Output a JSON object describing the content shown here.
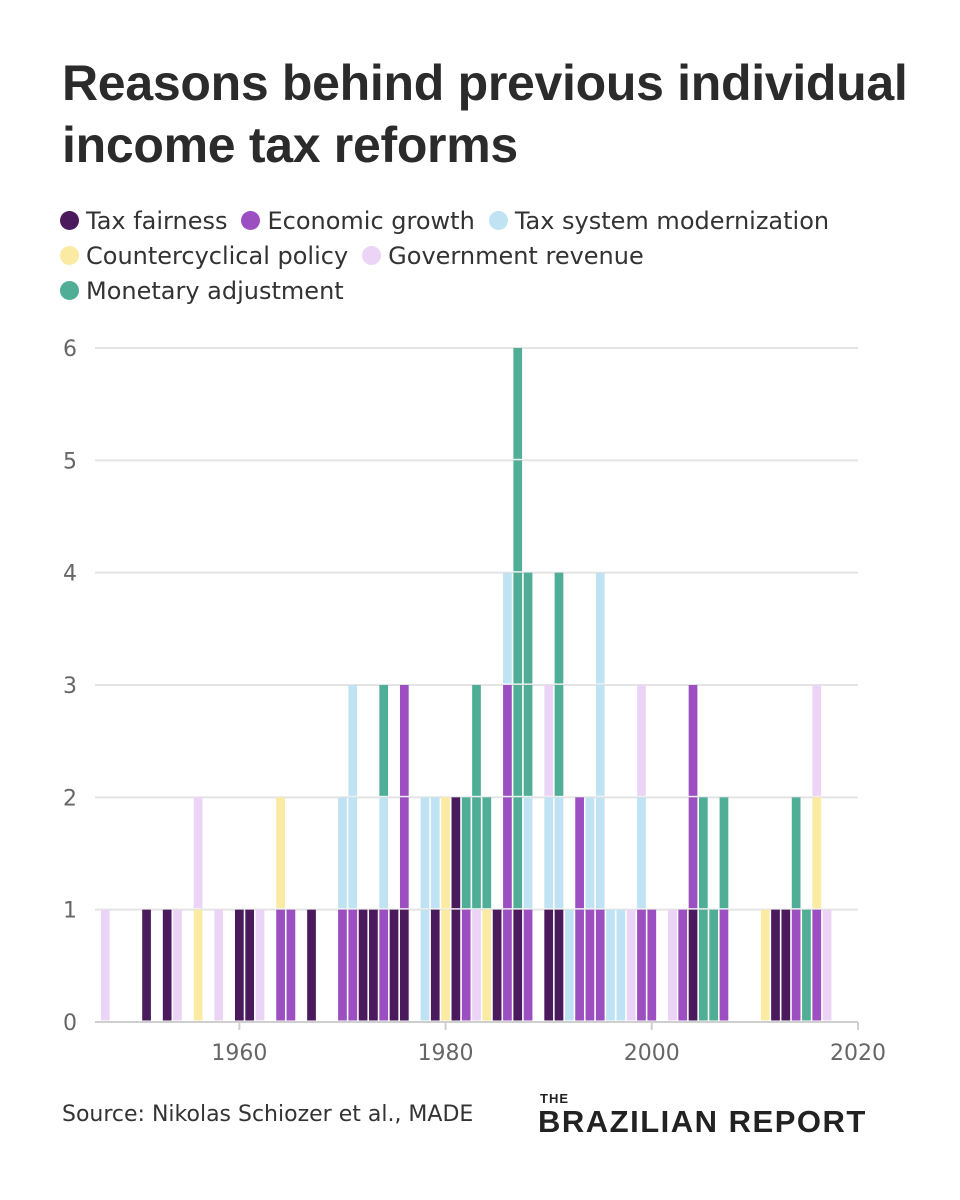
{
  "title": "Reasons behind previous individual income tax reforms",
  "legend": [
    {
      "label": "Tax fairness",
      "color": "#4a1a5c"
    },
    {
      "label": "Economic growth",
      "color": "#9b4fc1"
    },
    {
      "label": "Tax system modernization",
      "color": "#bfe3f2"
    },
    {
      "label": "Countercyclical policy",
      "color": "#fbeaa2"
    },
    {
      "label": "Government revenue",
      "color": "#ecd4f7"
    },
    {
      "label": "Monetary adjustment",
      "color": "#4fae95"
    }
  ],
  "source": "Source: Nikolas Schiozer et al., MADE",
  "logo": {
    "the": "THE",
    "main": "BRAZILIAN REPORT",
    "accent": "#1aa0c9"
  },
  "chart_data": {
    "type": "bar",
    "stacked": true,
    "title": "Reasons behind previous individual income tax reforms",
    "xlabel": "",
    "ylabel": "",
    "xlim": [
      1946,
      2020
    ],
    "ylim": [
      0,
      6
    ],
    "x_ticks": [
      "1960",
      "1980",
      "2000",
      "2020"
    ],
    "y_ticks": [
      "0",
      "1",
      "2",
      "3",
      "4",
      "5",
      "6"
    ],
    "grid": true,
    "legend_position": "top",
    "series_names": [
      "Tax fairness",
      "Economic growth",
      "Tax system modernization",
      "Countercyclical policy",
      "Government revenue",
      "Monetary adjustment"
    ],
    "bars": [
      {
        "year": 1947,
        "stack": [
          [
            "Government revenue",
            1
          ]
        ]
      },
      {
        "year": 1951,
        "stack": [
          [
            "Tax fairness",
            1
          ]
        ]
      },
      {
        "year": 1953,
        "stack": [
          [
            "Tax fairness",
            1
          ]
        ]
      },
      {
        "year": 1954,
        "stack": [
          [
            "Government revenue",
            1
          ]
        ]
      },
      {
        "year": 1956,
        "stack": [
          [
            "Countercyclical policy",
            1
          ],
          [
            "Government revenue",
            1
          ]
        ]
      },
      {
        "year": 1958,
        "stack": [
          [
            "Government revenue",
            1
          ]
        ]
      },
      {
        "year": 1960,
        "stack": [
          [
            "Tax fairness",
            1
          ]
        ]
      },
      {
        "year": 1961,
        "stack": [
          [
            "Tax fairness",
            1
          ]
        ]
      },
      {
        "year": 1962,
        "stack": [
          [
            "Government revenue",
            1
          ]
        ]
      },
      {
        "year": 1964,
        "stack": [
          [
            "Economic growth",
            1
          ],
          [
            "Countercyclical policy",
            1
          ]
        ]
      },
      {
        "year": 1965,
        "stack": [
          [
            "Economic growth",
            1
          ]
        ]
      },
      {
        "year": 1967,
        "stack": [
          [
            "Tax fairness",
            1
          ]
        ]
      },
      {
        "year": 1970,
        "stack": [
          [
            "Economic growth",
            1
          ],
          [
            "Tax system modernization",
            1
          ]
        ]
      },
      {
        "year": 1971,
        "stack": [
          [
            "Economic growth",
            1
          ],
          [
            "Tax system modernization",
            2
          ]
        ]
      },
      {
        "year": 1972,
        "stack": [
          [
            "Tax fairness",
            1
          ]
        ]
      },
      {
        "year": 1973,
        "stack": [
          [
            "Tax fairness",
            1
          ]
        ]
      },
      {
        "year": 1974,
        "stack": [
          [
            "Economic growth",
            1
          ],
          [
            "Tax system modernization",
            1
          ],
          [
            "Monetary adjustment",
            1
          ]
        ]
      },
      {
        "year": 1975,
        "stack": [
          [
            "Tax fairness",
            1
          ]
        ]
      },
      {
        "year": 1976,
        "stack": [
          [
            "Tax fairness",
            1
          ],
          [
            "Economic growth",
            2
          ]
        ]
      },
      {
        "year": 1978,
        "stack": [
          [
            "Tax system modernization",
            2
          ]
        ]
      },
      {
        "year": 1979,
        "stack": [
          [
            "Tax fairness",
            1
          ],
          [
            "Tax system modernization",
            1
          ]
        ]
      },
      {
        "year": 1980,
        "stack": [
          [
            "Countercyclical policy",
            2
          ]
        ]
      },
      {
        "year": 1981,
        "stack": [
          [
            "Tax fairness",
            2
          ]
        ]
      },
      {
        "year": 1982,
        "stack": [
          [
            "Economic growth",
            1
          ],
          [
            "Monetary adjustment",
            1
          ]
        ]
      },
      {
        "year": 1983,
        "stack": [
          [
            "Government revenue",
            1
          ],
          [
            "Monetary adjustment",
            2
          ]
        ]
      },
      {
        "year": 1984,
        "stack": [
          [
            "Countercyclical policy",
            1
          ],
          [
            "Monetary adjustment",
            1
          ]
        ]
      },
      {
        "year": 1985,
        "stack": [
          [
            "Tax fairness",
            1
          ]
        ]
      },
      {
        "year": 1986,
        "stack": [
          [
            "Economic growth",
            3
          ],
          [
            "Tax system modernization",
            1
          ]
        ]
      },
      {
        "year": 1987,
        "stack": [
          [
            "Tax fairness",
            1
          ],
          [
            "Monetary adjustment",
            5
          ]
        ]
      },
      {
        "year": 1988,
        "stack": [
          [
            "Economic growth",
            1
          ],
          [
            "Tax system modernization",
            1
          ],
          [
            "Monetary adjustment",
            2
          ]
        ]
      },
      {
        "year": 1990,
        "stack": [
          [
            "Tax fairness",
            1
          ],
          [
            "Tax system modernization",
            1
          ],
          [
            "Government revenue",
            1
          ]
        ]
      },
      {
        "year": 1991,
        "stack": [
          [
            "Tax fairness",
            1
          ],
          [
            "Tax system modernization",
            1
          ],
          [
            "Monetary adjustment",
            2
          ]
        ]
      },
      {
        "year": 1992,
        "stack": [
          [
            "Tax system modernization",
            1
          ]
        ]
      },
      {
        "year": 1993,
        "stack": [
          [
            "Economic growth",
            2
          ]
        ]
      },
      {
        "year": 1994,
        "stack": [
          [
            "Economic growth",
            1
          ],
          [
            "Tax system modernization",
            1
          ]
        ]
      },
      {
        "year": 1995,
        "stack": [
          [
            "Economic growth",
            1
          ],
          [
            "Tax system modernization",
            3
          ]
        ]
      },
      {
        "year": 1996,
        "stack": [
          [
            "Tax system modernization",
            1
          ]
        ]
      },
      {
        "year": 1997,
        "stack": [
          [
            "Tax system modernization",
            1
          ]
        ]
      },
      {
        "year": 1998,
        "stack": [
          [
            "Government revenue",
            1
          ]
        ]
      },
      {
        "year": 1999,
        "stack": [
          [
            "Economic growth",
            1
          ],
          [
            "Tax system modernization",
            1
          ],
          [
            "Government revenue",
            1
          ]
        ]
      },
      {
        "year": 2000,
        "stack": [
          [
            "Economic growth",
            1
          ]
        ]
      },
      {
        "year": 2002,
        "stack": [
          [
            "Government revenue",
            1
          ]
        ]
      },
      {
        "year": 2003,
        "stack": [
          [
            "Economic growth",
            1
          ]
        ]
      },
      {
        "year": 2004,
        "stack": [
          [
            "Tax fairness",
            1
          ],
          [
            "Economic growth",
            2
          ]
        ]
      },
      {
        "year": 2005,
        "stack": [
          [
            "Monetary adjustment",
            2
          ]
        ]
      },
      {
        "year": 2006,
        "stack": [
          [
            "Monetary adjustment",
            1
          ]
        ]
      },
      {
        "year": 2007,
        "stack": [
          [
            "Economic growth",
            1
          ],
          [
            "Monetary adjustment",
            1
          ]
        ]
      },
      {
        "year": 2011,
        "stack": [
          [
            "Countercyclical policy",
            1
          ]
        ]
      },
      {
        "year": 2012,
        "stack": [
          [
            "Tax fairness",
            1
          ]
        ]
      },
      {
        "year": 2013,
        "stack": [
          [
            "Tax fairness",
            1
          ]
        ]
      },
      {
        "year": 2014,
        "stack": [
          [
            "Economic growth",
            1
          ],
          [
            "Monetary adjustment",
            1
          ]
        ]
      },
      {
        "year": 2015,
        "stack": [
          [
            "Monetary adjustment",
            1
          ]
        ]
      },
      {
        "year": 2016,
        "stack": [
          [
            "Economic growth",
            1
          ],
          [
            "Countercyclical policy",
            1
          ],
          [
            "Government revenue",
            1
          ]
        ]
      },
      {
        "year": 2017,
        "stack": [
          [
            "Government revenue",
            1
          ]
        ]
      }
    ]
  }
}
